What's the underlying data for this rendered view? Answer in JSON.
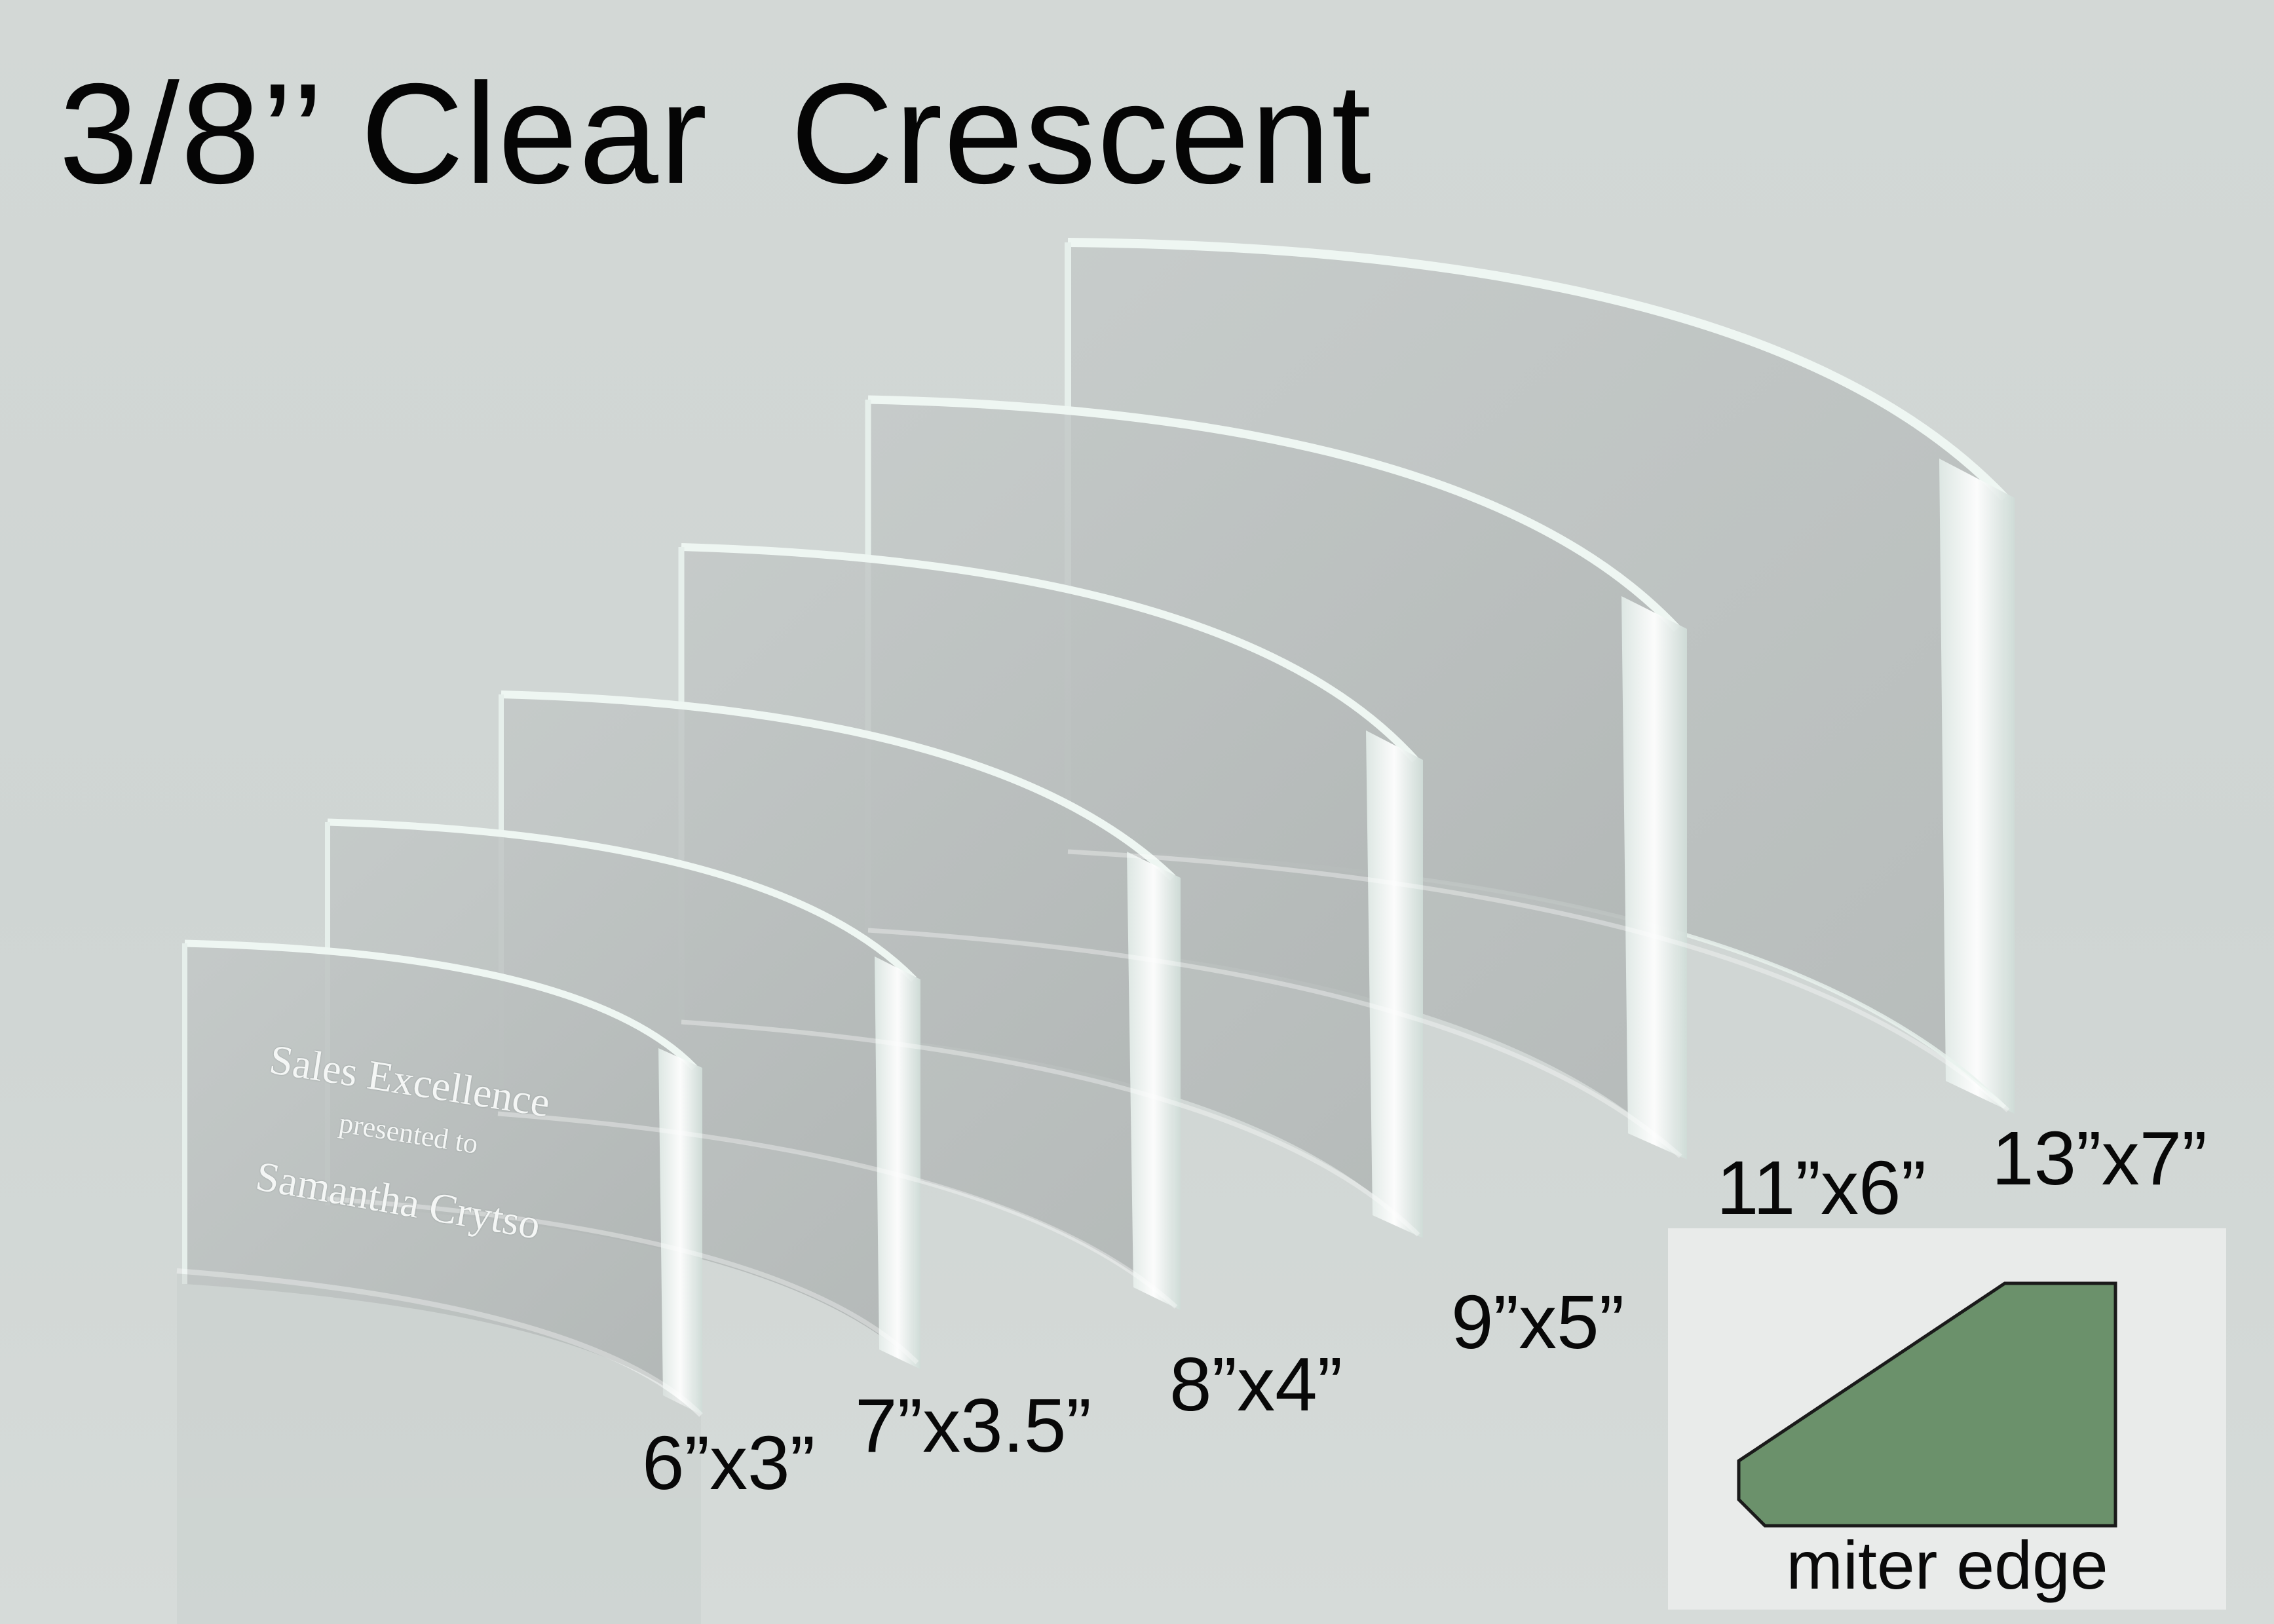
{
  "title": "3/8’’ Clear  Crescent",
  "engraving": {
    "line1": "Sales Excellence",
    "line2": "presented to",
    "line3": "Samantha Crytso"
  },
  "sizes": [
    "6”x3”",
    "7”x3.5”",
    "8”x4”",
    "9”x5”",
    "11”x6”",
    "13”x7”"
  ],
  "miter": {
    "label": "miter edge",
    "fill_color": "#6b916b"
  },
  "colors": {
    "background": "#d2d7d5",
    "glass_face": "#b9bebd",
    "glass_edge": "#eef6f2"
  }
}
